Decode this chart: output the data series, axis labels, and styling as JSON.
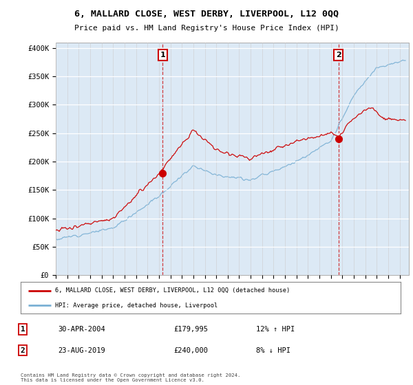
{
  "title": "6, MALLARD CLOSE, WEST DERBY, LIVERPOOL, L12 0QQ",
  "subtitle": "Price paid vs. HM Land Registry's House Price Index (HPI)",
  "background_color": "#dce9f5",
  "plot_bg_color": "#dce9f5",
  "ylim": [
    0,
    410000
  ],
  "yticks": [
    0,
    50000,
    100000,
    150000,
    200000,
    250000,
    300000,
    350000,
    400000
  ],
  "ytick_labels": [
    "£0",
    "£50K",
    "£100K",
    "£150K",
    "£200K",
    "£250K",
    "£300K",
    "£350K",
    "£400K"
  ],
  "year_start": 1995,
  "year_end": 2025,
  "sale1_date_label": "30-APR-2004",
  "sale1_price": 179995,
  "sale1_hpi_change": "12% ↑ HPI",
  "sale1_year": 2004.33,
  "sale2_date_label": "23-AUG-2019",
  "sale2_price": 240000,
  "sale2_hpi_change": "8% ↓ HPI",
  "sale2_year": 2019.65,
  "legend_line1": "6, MALLARD CLOSE, WEST DERBY, LIVERPOOL, L12 0QQ (detached house)",
  "legend_line2": "HPI: Average price, detached house, Liverpool",
  "footer": "Contains HM Land Registry data © Crown copyright and database right 2024.\nThis data is licensed under the Open Government Licence v3.0.",
  "red_line_color": "#cc0000",
  "blue_line_color": "#7ab0d4",
  "sale_marker_color": "#cc0000",
  "vline_color": "#cc0000"
}
